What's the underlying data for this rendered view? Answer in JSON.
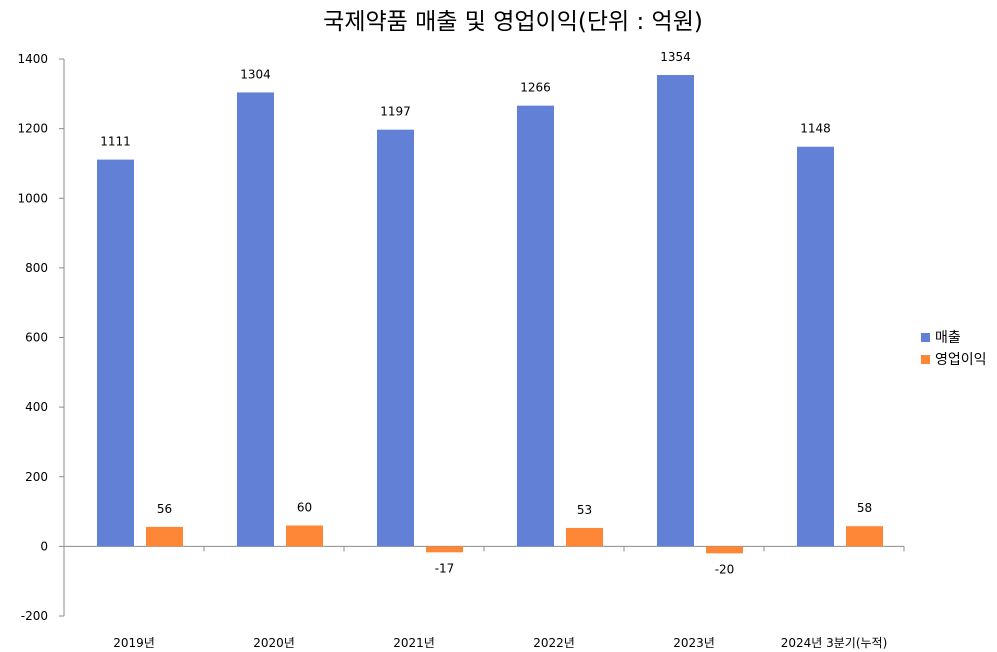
{
  "chart_data": {
    "type": "bar",
    "title": "국제약품 매출 및 영업이익(단위 : 억원)",
    "categories": [
      "2019년",
      "2020년",
      "2021년",
      "2022년",
      "2023년",
      "2024년 3분기(누적)"
    ],
    "series": [
      {
        "name": "매출",
        "color": "#6281d6",
        "values": [
          1111,
          1304,
          1197,
          1266,
          1354,
          1148
        ]
      },
      {
        "name": "영업이익",
        "color": "#fd8637",
        "values": [
          56,
          60,
          -17,
          53,
          -20,
          58
        ]
      }
    ],
    "ylim": [
      -200,
      1400
    ],
    "yticks": [
      -200,
      0,
      200,
      400,
      600,
      800,
      1000,
      1200,
      1400
    ],
    "grid": false,
    "legend_position": "right",
    "data_labels": true
  }
}
